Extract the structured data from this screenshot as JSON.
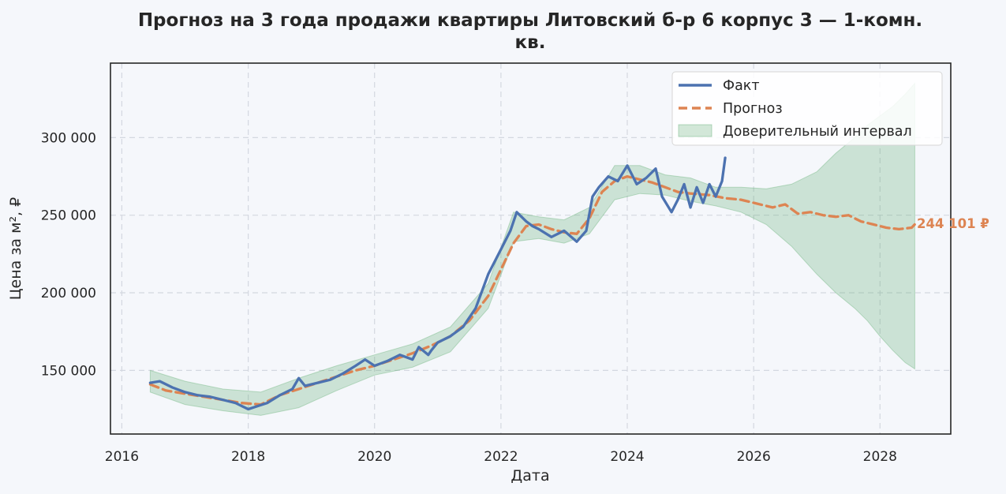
{
  "chart_data": {
    "type": "line",
    "title_line1": "Прогноз на 3 года продажи квартиры  Литовский б-р 6 корпус 3 — 1-комн.",
    "title_line2": "кв.",
    "xlabel": "Дата",
    "ylabel": "Цена за м², ₽",
    "xlim": [
      2015.82,
      2029.12
    ],
    "ylim": [
      109000,
      348000
    ],
    "x_ticks": [
      2016,
      2018,
      2020,
      2022,
      2024,
      2026,
      2028
    ],
    "x_tick_labels": [
      "2016",
      "2018",
      "2020",
      "2022",
      "2024",
      "2026",
      "2028"
    ],
    "y_ticks": [
      150000,
      200000,
      250000,
      300000
    ],
    "y_tick_labels": [
      "150 000",
      "200 000",
      "250 000",
      "300 000"
    ],
    "grid": true,
    "legend_position": "top-right",
    "end_label": "244 101 ₽",
    "colors": {
      "fact": "#4c72b0",
      "forecast": "#dd8452",
      "ci": "#55a868"
    },
    "series": [
      {
        "name": "Факт",
        "style": "solid",
        "x": [
          2016.45,
          2016.6,
          2016.8,
          2017.0,
          2017.2,
          2017.4,
          2017.6,
          2017.8,
          2018.0,
          2018.15,
          2018.3,
          2018.5,
          2018.7,
          2018.8,
          2018.9,
          2019.1,
          2019.3,
          2019.5,
          2019.7,
          2019.85,
          2020.0,
          2020.2,
          2020.4,
          2020.6,
          2020.7,
          2020.85,
          2020.9,
          2021.0,
          2021.2,
          2021.4,
          2021.6,
          2021.8,
          2022.0,
          2022.15,
          2022.25,
          2022.4,
          2022.5,
          2022.6,
          2022.8,
          2023.0,
          2023.2,
          2023.35,
          2023.45,
          2023.55,
          2023.7,
          2023.85,
          2024.0,
          2024.15,
          2024.3,
          2024.45,
          2024.55,
          2024.7,
          2024.8,
          2024.9,
          2025.0,
          2025.1,
          2025.2,
          2025.3,
          2025.4,
          2025.5,
          2025.55
        ],
        "values": [
          142000,
          143000,
          139000,
          136000,
          134000,
          133000,
          131000,
          129000,
          125000,
          127000,
          129000,
          134000,
          138000,
          145000,
          140000,
          142000,
          144000,
          148000,
          153000,
          157000,
          153000,
          156000,
          160000,
          157000,
          165000,
          160000,
          163000,
          168000,
          172000,
          178000,
          190000,
          212000,
          228000,
          240000,
          252000,
          246000,
          243000,
          241000,
          236000,
          240000,
          233000,
          240000,
          262000,
          268000,
          275000,
          272000,
          282000,
          270000,
          274000,
          280000,
          262000,
          252000,
          260000,
          270000,
          255000,
          268000,
          258000,
          270000,
          262000,
          272000,
          287000
        ]
      },
      {
        "name": "Прогноз",
        "style": "dashed",
        "x": [
          2016.45,
          2016.7,
          2017.0,
          2017.3,
          2017.6,
          2017.9,
          2018.2,
          2018.5,
          2018.8,
          2019.1,
          2019.4,
          2019.7,
          2020.0,
          2020.3,
          2020.6,
          2020.9,
          2021.2,
          2021.5,
          2021.8,
          2022.0,
          2022.2,
          2022.4,
          2022.6,
          2022.8,
          2023.0,
          2023.2,
          2023.4,
          2023.6,
          2023.8,
          2024.0,
          2024.2,
          2024.4,
          2024.6,
          2024.8,
          2025.0,
          2025.3,
          2025.55,
          2025.8,
          2026.0,
          2026.3,
          2026.5,
          2026.7,
          2026.9,
          2027.1,
          2027.3,
          2027.5,
          2027.7,
          2027.9,
          2028.1,
          2028.3,
          2028.5,
          2028.55
        ],
        "values": [
          141000,
          137000,
          135000,
          133000,
          131000,
          129000,
          128000,
          134000,
          138000,
          142000,
          146000,
          150000,
          153000,
          157000,
          161000,
          166000,
          172000,
          182000,
          198000,
          215000,
          232000,
          243000,
          244000,
          241000,
          239000,
          238000,
          248000,
          265000,
          272000,
          275000,
          273000,
          271000,
          268000,
          265000,
          264000,
          263000,
          261000,
          260000,
          258000,
          255000,
          257000,
          251000,
          252000,
          250000,
          249000,
          250000,
          246000,
          244000,
          242000,
          241000,
          242000,
          244101
        ]
      }
    ],
    "confidence_interval": {
      "name": "Доверительный интервал",
      "x": [
        2016.45,
        2017.0,
        2017.6,
        2018.2,
        2018.8,
        2019.4,
        2020.0,
        2020.6,
        2021.2,
        2021.8,
        2022.2,
        2022.6,
        2023.0,
        2023.4,
        2023.8,
        2024.2,
        2024.6,
        2025.0,
        2025.4,
        2025.8,
        2026.2,
        2026.6,
        2027.0,
        2027.3,
        2027.6,
        2027.8,
        2028.0,
        2028.2,
        2028.4,
        2028.55
      ],
      "upper": [
        150000,
        143000,
        138000,
        136000,
        145000,
        153000,
        160000,
        167000,
        178000,
        206000,
        252000,
        249000,
        247000,
        255000,
        282000,
        282000,
        276000,
        274000,
        268000,
        268000,
        267000,
        270000,
        278000,
        290000,
        300000,
        308000,
        314000,
        320000,
        328000,
        335000
      ],
      "lower": [
        136000,
        128000,
        124000,
        121000,
        126000,
        137000,
        147000,
        152000,
        162000,
        190000,
        233000,
        235000,
        232000,
        238000,
        260000,
        264000,
        263000,
        259000,
        256000,
        252000,
        244000,
        230000,
        212000,
        200000,
        190000,
        182000,
        172000,
        163000,
        155000,
        151000
      ]
    }
  }
}
